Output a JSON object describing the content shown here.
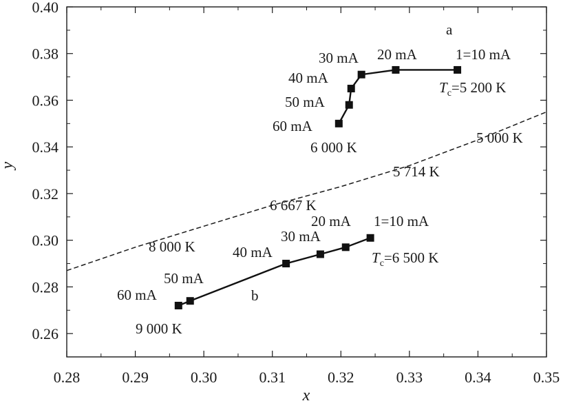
{
  "chart_data": {
    "type": "line",
    "xlabel": "x",
    "ylabel": "y",
    "xlim": [
      0.28,
      0.35
    ],
    "ylim": [
      0.25,
      0.4
    ],
    "x_ticks": [
      "0.28",
      "0.29",
      "0.30",
      "0.31",
      "0.32",
      "0.33",
      "0.34",
      "0.35"
    ],
    "y_ticks": [
      "0.26",
      "0.28",
      "0.30",
      "0.32",
      "0.34",
      "0.36",
      "0.38",
      "0.40"
    ],
    "series": [
      {
        "name": "a",
        "label": "a",
        "points": [
          {
            "x": 0.337,
            "y": 0.373,
            "label": "1=10 mA"
          },
          {
            "x": 0.328,
            "y": 0.373,
            "label": "20 mA"
          },
          {
            "x": 0.323,
            "y": 0.371,
            "label": "30 mA"
          },
          {
            "x": 0.3215,
            "y": 0.365,
            "label": "40 mA"
          },
          {
            "x": 0.3212,
            "y": 0.358,
            "label": "50 mA"
          },
          {
            "x": 0.3197,
            "y": 0.35,
            "label": "60 mA"
          }
        ]
      },
      {
        "name": "b",
        "label": "b",
        "points": [
          {
            "x": 0.3243,
            "y": 0.301,
            "label": "1=10 mA"
          },
          {
            "x": 0.3207,
            "y": 0.297,
            "label": "20 mA"
          },
          {
            "x": 0.317,
            "y": 0.294,
            "label": "30 mA"
          },
          {
            "x": 0.312,
            "y": 0.29,
            "label": "40 mA"
          },
          {
            "x": 0.298,
            "y": 0.274,
            "label": "50 mA"
          },
          {
            "x": 0.2963,
            "y": 0.272,
            "label": "60 mA"
          }
        ]
      }
    ],
    "planckian_locus": {
      "style": "dashed",
      "points": [
        {
          "x": 0.28,
          "y": 0.287
        },
        {
          "x": 0.29,
          "y": 0.297
        },
        {
          "x": 0.3,
          "y": 0.306
        },
        {
          "x": 0.31,
          "y": 0.315
        },
        {
          "x": 0.32,
          "y": 0.323
        },
        {
          "x": 0.33,
          "y": 0.332
        },
        {
          "x": 0.34,
          "y": 0.343
        },
        {
          "x": 0.35,
          "y": 0.355
        }
      ]
    },
    "annotations": {
      "tc_a": {
        "prefix": "T",
        "sub": "c",
        "rest": "=5 200 K"
      },
      "tc_b": {
        "prefix": "T",
        "sub": "c",
        "rest": "=6 500 K"
      },
      "k_6000": "6 000 K",
      "k_5000": "5 000 K",
      "k_5714": "5 714 K",
      "k_6667": "6 667 K",
      "k_8000": "8 000 K",
      "k_9000": "9 000 K"
    }
  }
}
